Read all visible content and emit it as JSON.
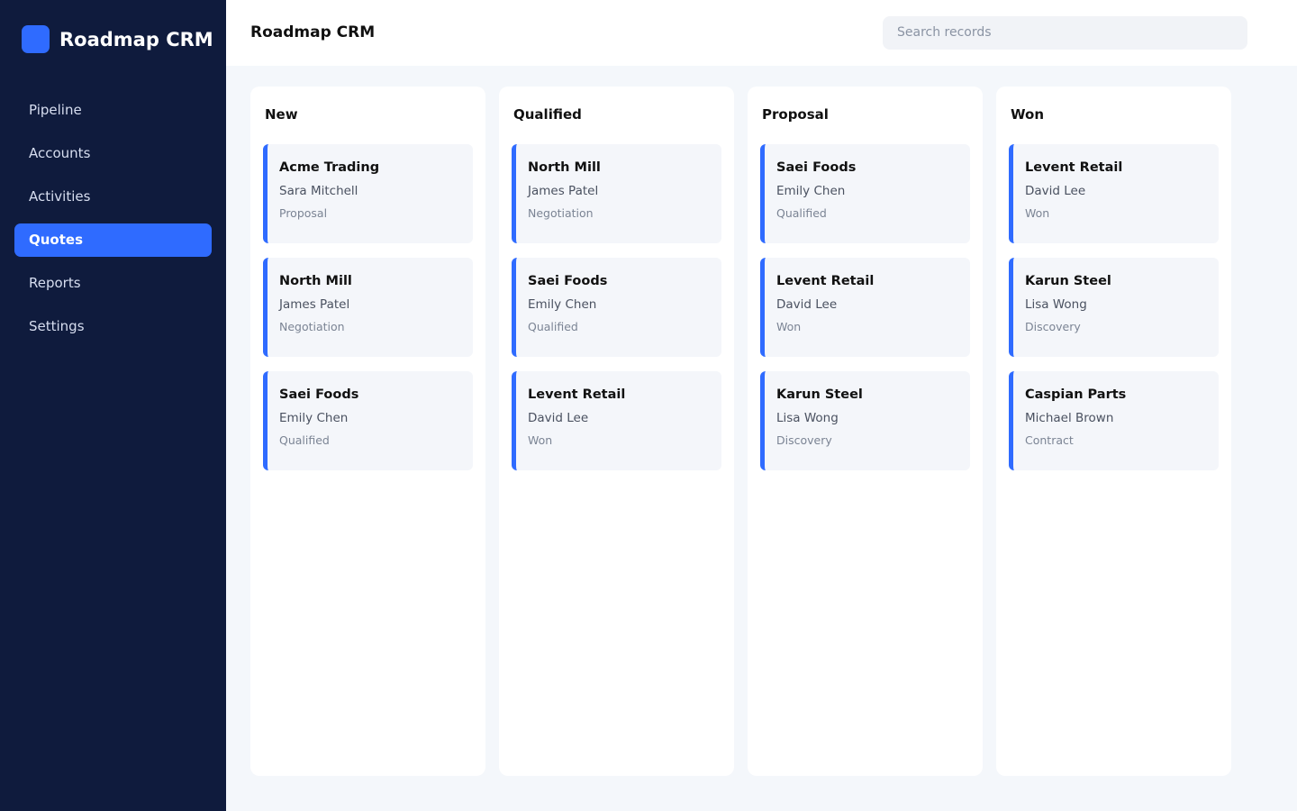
{
  "sidebar": {
    "brand": "Roadmap CRM",
    "nav": [
      "Pipeline",
      "Accounts",
      "Activities",
      "Quotes",
      "Reports",
      "Settings"
    ],
    "active": 3
  },
  "header": {
    "title": "Roadmap CRM",
    "search_placeholder": "Search records"
  },
  "board": {
    "columns": [
      {
        "title": "New",
        "cards": [
          {
            "company": "Acme Trading",
            "contact": "Sara Mitchell",
            "stage": "Proposal"
          },
          {
            "company": "North Mill",
            "contact": "James Patel",
            "stage": "Negotiation"
          },
          {
            "company": "Saei Foods",
            "contact": "Emily Chen",
            "stage": "Qualified"
          }
        ]
      },
      {
        "title": "Qualified",
        "cards": [
          {
            "company": "North Mill",
            "contact": "James Patel",
            "stage": "Negotiation"
          },
          {
            "company": "Saei Foods",
            "contact": "Emily Chen",
            "stage": "Qualified"
          },
          {
            "company": "Levent Retail",
            "contact": "David Lee",
            "stage": "Won"
          }
        ]
      },
      {
        "title": "Proposal",
        "cards": [
          {
            "company": "Saei Foods",
            "contact": "Emily Chen",
            "stage": "Qualified"
          },
          {
            "company": "Levent Retail",
            "contact": "David Lee",
            "stage": "Won"
          },
          {
            "company": "Karun Steel",
            "contact": "Lisa Wong",
            "stage": "Discovery"
          }
        ]
      },
      {
        "title": "Won",
        "cards": [
          {
            "company": "Levent Retail",
            "contact": "David Lee",
            "stage": "Won"
          },
          {
            "company": "Karun Steel",
            "contact": "Lisa Wong",
            "stage": "Discovery"
          },
          {
            "company": "Caspian Parts",
            "contact": "Michael Brown",
            "stage": "Contract"
          }
        ]
      }
    ]
  }
}
